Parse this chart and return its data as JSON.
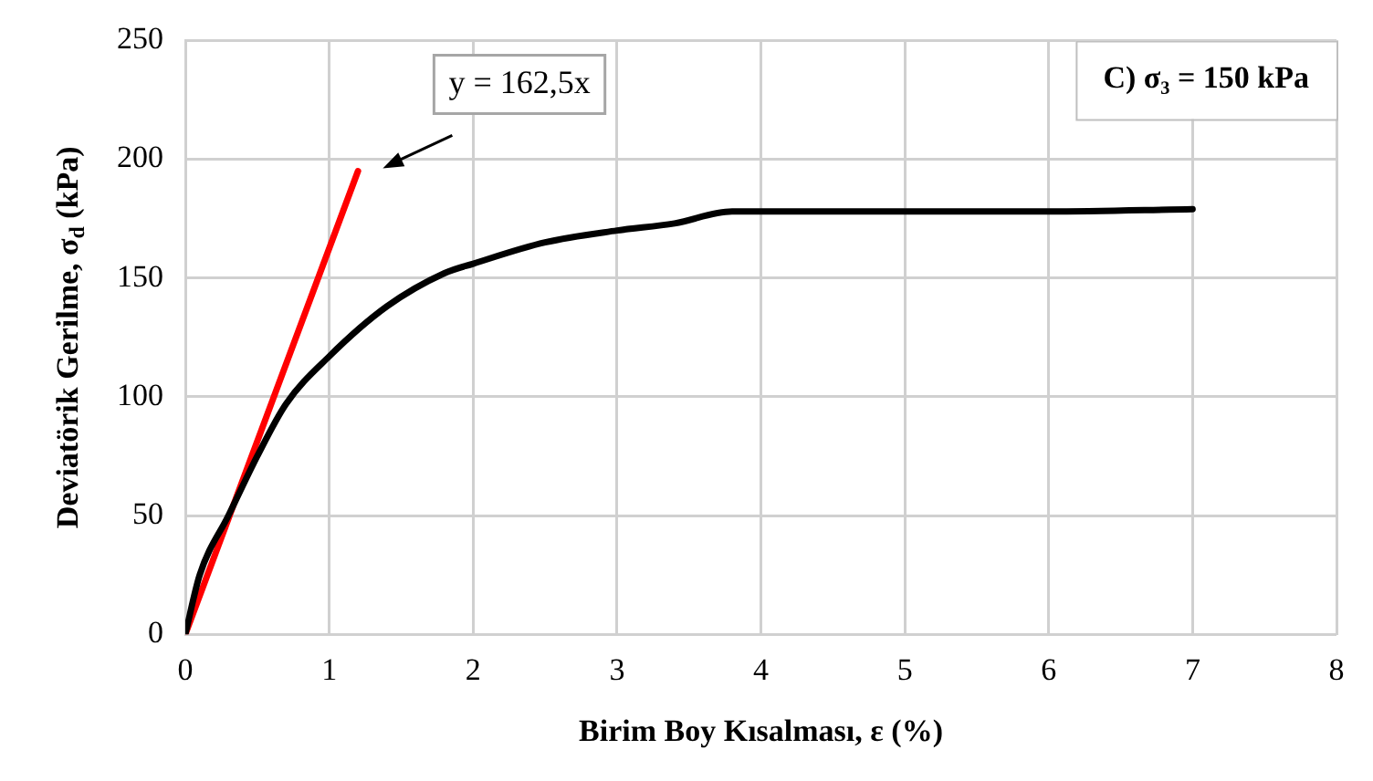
{
  "chart_data": {
    "type": "line",
    "xlabel": "Birim Boy Kısalması, ε (%)",
    "ylabel": "Deviatörik Gerilme, σ$_{d}$ (kPa)",
    "xlim": [
      0,
      8
    ],
    "xticks": [
      0,
      1,
      2,
      3,
      4,
      5,
      6,
      7,
      8
    ],
    "ylim": [
      0,
      250
    ],
    "yticks": [
      0,
      50,
      100,
      150,
      200,
      250
    ],
    "grid": true,
    "legend": false,
    "marker": "none",
    "line_style": "solid",
    "x": [
      0,
      0.1,
      0.3,
      0.5,
      0.7,
      1,
      1.4,
      1.8,
      2,
      2.5,
      3,
      3.4,
      3.8,
      4,
      5,
      6,
      7
    ],
    "series": [
      {
        "color": "#000000",
        "values": [
          0,
          25,
          50,
          75,
          97,
          117,
          138,
          152,
          156,
          165,
          170,
          173,
          178,
          178,
          178,
          178,
          179
        ]
      },
      {
        "color": "#ff0000",
        "x": [
          0,
          1.2
        ],
        "values": [
          0,
          195
        ]
      }
    ],
    "annotations": [
      "y = 162,5x",
      "C) σ₃ = 150 kPa"
    ]
  }
}
